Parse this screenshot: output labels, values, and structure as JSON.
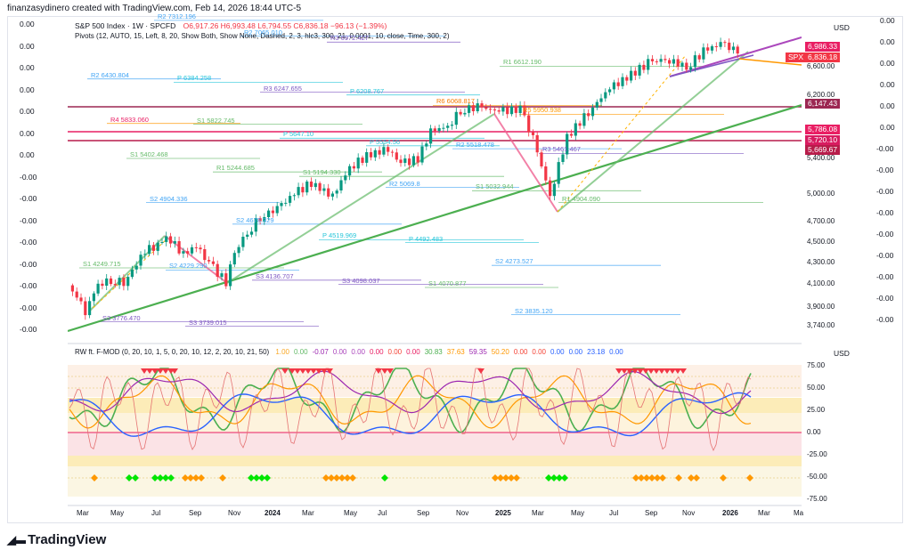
{
  "header_text": "finanzasydinero created with TradingView.com, Feb 14, 2026 18:44 UTC-5",
  "brand": "TradingView",
  "legend": {
    "symbol": "S&P 500 Index · 1W · SPCFD",
    "ohlc": "O6,917.26  H6,993.48  L6,794.55  C6,836.18  −96.13 (−1.39%)",
    "pivots": "Pivots (12, AUTO, 15, Left, 8, 20, Show Both, Show None, Dashed, 2, 3, hlc3, 300, 21, 0.0001, 10, close, Time, 300, 2)",
    "osc": "RW ft. F-MOD (0, 20, 10, 1, 5, 0, 20, 10, 12, 2, 20, 10, 21, 50)",
    "osc_vals": [
      "1.00",
      "0.00",
      "-0.07",
      "0.00",
      "0.00",
      "0.00",
      "0.00",
      "0.00",
      "30.83",
      "37.63",
      "59.35",
      "50.20",
      "0.00",
      "0.00",
      "0.00",
      "0.00",
      "23.18",
      "0.00"
    ],
    "osc_colors": [
      "#f9a825",
      "#66bb6a",
      "#9c27b0",
      "#ab47bc",
      "#ab47bc",
      "#e91e63",
      "#f44336",
      "#e91e63",
      "#4caf50",
      "#ff9800",
      "#9c27b0",
      "#ff9800",
      "#f44336",
      "#f44336",
      "#2962ff",
      "#2962ff",
      "#2962ff",
      "#2962ff"
    ]
  },
  "price_axis": {
    "currency": "USD",
    "ticks": [
      "6,600.00",
      "6,200.00",
      "5,400.00",
      "5,000.00",
      "4,700.00",
      "4,500.00",
      "4,300.00",
      "4,100.00",
      "3,900.00",
      "3,740.00"
    ],
    "tags": [
      {
        "text": "6,986.33",
        "color": "#e91e63"
      },
      {
        "text": "SPX",
        "color": "#f23645"
      },
      {
        "text": "6,836.18",
        "color": "#f23645"
      },
      {
        "text": "6,147.43",
        "color": "#9c2752"
      },
      {
        "text": "5,786.08",
        "color": "#e91e63"
      },
      {
        "text": "5,720.10",
        "color": "#d81b60"
      },
      {
        "text": "5,669.67",
        "color": "#b71c4a"
      }
    ]
  },
  "osc_axis": {
    "currency": "USD",
    "ticks": [
      "75.00",
      "50.00",
      "25.00",
      "0.00",
      "-25.00",
      "-50.00",
      "-75.00"
    ]
  },
  "side_left": [
    "0.00",
    "0.00",
    "0.00",
    "0.00",
    "0.00",
    "0.00",
    "0.00",
    "-0.00",
    "-0.00",
    "-0.00",
    "-0.00",
    "-0.00",
    "-0.00",
    "-0.00",
    "-0.00"
  ],
  "side_right": [
    "0.00",
    "0.00",
    "0.00",
    "0.00",
    "0.00",
    "0.00",
    "-0.00",
    "-0.00",
    "-0.00",
    "-0.00",
    "-0.00",
    "-0.00",
    "-0.00",
    "-0.00",
    "-0.00"
  ],
  "time_axis": [
    "Mar",
    "May",
    "Jul",
    "Sep",
    "Nov",
    "2024",
    "Mar",
    "May",
    "Jul",
    "Sep",
    "Nov",
    "2025",
    "Mar",
    "May",
    "Jul",
    "Sep",
    "Nov",
    "2026",
    "Mar",
    "Ma"
  ],
  "pivot_labels": [
    {
      "name": "R4",
      "value": "7514.049",
      "color": "#ab47bc"
    },
    {
      "name": "R2",
      "value": "7312.196",
      "color": "#42a5f5"
    },
    {
      "name": "R2",
      "value": "7065.010",
      "color": "#42a5f5"
    },
    {
      "name": "R3",
      "value": "6972.427",
      "color": "#7e57c2"
    },
    {
      "name": "R1",
      "value": "2015.364",
      "color": "#66bb6a"
    },
    {
      "name": "R1",
      "value": "6612.190",
      "color": "#66bb6a"
    },
    {
      "name": "R2",
      "value": "6430.804",
      "color": "#42a5f5"
    },
    {
      "name": "P",
      "value": "6384.258",
      "color": "#26c6da"
    },
    {
      "name": "R3",
      "value": "6247.655",
      "color": "#7e57c2"
    },
    {
      "name": "P",
      "value": "6208.767",
      "color": "#26c6da"
    },
    {
      "name": "R6",
      "value": "6068.817",
      "color": "#f57c00"
    },
    {
      "name": "R5",
      "value": "5950.938",
      "color": "#ff9800"
    },
    {
      "name": "R4",
      "value": "5833.060",
      "color": "#e91e63"
    },
    {
      "name": "S1",
      "value": "5822.745",
      "color": "#66bb6a"
    },
    {
      "name": "P",
      "value": "5647.10",
      "color": "#26c6da"
    },
    {
      "name": "P",
      "value": "5554.56",
      "color": "#26c6da"
    },
    {
      "name": "R2",
      "value": "5518.478",
      "color": "#42a5f5"
    },
    {
      "name": "R3",
      "value": "5461.467",
      "color": "#7e57c2"
    },
    {
      "name": "S1",
      "value": "5402.468",
      "color": "#66bb6a"
    },
    {
      "name": "R1",
      "value": "5244.685",
      "color": "#66bb6a"
    },
    {
      "name": "S1",
      "value": "5194.330",
      "color": "#66bb6a"
    },
    {
      "name": "R2",
      "value": "5069.8",
      "color": "#42a5f5"
    },
    {
      "name": "S1",
      "value": "5032.944",
      "color": "#66bb6a"
    },
    {
      "name": "R1",
      "value": "4904.090",
      "color": "#66bb6a"
    },
    {
      "name": "S2",
      "value": "4904.336",
      "color": "#42a5f5"
    },
    {
      "name": "S2",
      "value": "4678.329",
      "color": "#42a5f5"
    },
    {
      "name": "P",
      "value": "4519.969",
      "color": "#26c6da"
    },
    {
      "name": "P",
      "value": "4492.483",
      "color": "#26c6da"
    },
    {
      "name": "S2",
      "value": "4273.527",
      "color": "#42a5f5"
    },
    {
      "name": "S1",
      "value": "4249.715",
      "color": "#66bb6a"
    },
    {
      "name": "S2",
      "value": "4229.290",
      "color": "#42a5f5"
    },
    {
      "name": "S3",
      "value": "4136.707",
      "color": "#7e57c2"
    },
    {
      "name": "S3",
      "value": "4098.037",
      "color": "#7e57c2"
    },
    {
      "name": "S1",
      "value": "4070.877",
      "color": "#66bb6a"
    },
    {
      "name": "S2",
      "value": "3835.120",
      "color": "#42a5f5"
    },
    {
      "name": "S3",
      "value": "3776.470",
      "color": "#7e57c2"
    },
    {
      "name": "S3",
      "value": "3739.015",
      "color": "#7e57c2"
    },
    {
      "name": "S4",
      "value": "3595.084",
      "color": "#e91e63"
    }
  ],
  "chart_data": {
    "type": "candlestick",
    "title": "S&P 500 Index · 1W · SPCFD",
    "ohlc": {
      "open": 6917.26,
      "high": 6993.48,
      "low": 6794.55,
      "close": 6836.18,
      "change": -96.13,
      "change_pct": -1.39
    },
    "x_range": [
      "2023-02",
      "2026-05"
    ],
    "ylim": [
      3700,
      7100
    ],
    "series": [
      {
        "name": "S&P 500 Index",
        "values": [
          [
            "2023-02-06",
            4090
          ],
          [
            "2023-02-20",
            3980
          ],
          [
            "2023-03-06",
            3860
          ],
          [
            "2023-03-13",
            3920
          ],
          [
            "2023-03-27",
            4110
          ],
          [
            "2023-04-17",
            4130
          ],
          [
            "2023-05-08",
            4120
          ],
          [
            "2023-05-29",
            4280
          ],
          [
            "2023-06-12",
            4410
          ],
          [
            "2023-06-26",
            4450
          ],
          [
            "2023-07-17",
            4540
          ],
          [
            "2023-07-31",
            4480
          ],
          [
            "2023-08-14",
            4370
          ],
          [
            "2023-09-04",
            4460
          ],
          [
            "2023-09-25",
            4290
          ],
          [
            "2023-10-23",
            4120
          ],
          [
            "2023-11-06",
            4410
          ],
          [
            "2023-11-27",
            4590
          ],
          [
            "2023-12-18",
            4750
          ],
          [
            "2024-01-15",
            4840
          ],
          [
            "2024-02-12",
            5000
          ],
          [
            "2024-03-11",
            5120
          ],
          [
            "2024-04-15",
            4970
          ],
          [
            "2024-05-13",
            5300
          ],
          [
            "2024-06-10",
            5430
          ],
          [
            "2024-07-15",
            5520
          ],
          [
            "2024-08-05",
            5340
          ],
          [
            "2024-09-02",
            5400
          ],
          [
            "2024-09-23",
            5730
          ],
          [
            "2024-10-21",
            5800
          ],
          [
            "2024-11-11",
            6000
          ],
          [
            "2024-12-09",
            6050
          ],
          [
            "2025-01-13",
            5990
          ],
          [
            "2025-02-17",
            6020
          ],
          [
            "2025-03-10",
            5640
          ],
          [
            "2025-04-07",
            4980
          ],
          [
            "2025-05-05",
            5660
          ],
          [
            "2025-06-09",
            5980
          ],
          [
            "2025-07-14",
            6300
          ],
          [
            "2025-08-11",
            6450
          ],
          [
            "2025-09-15",
            6660
          ],
          [
            "2025-10-13",
            6720
          ],
          [
            "2025-11-17",
            6600
          ],
          [
            "2025-12-15",
            6830
          ],
          [
            "2026-01-12",
            6950
          ],
          [
            "2026-02-09",
            6836
          ]
        ]
      }
    ],
    "oscillator": {
      "name": "RW ft. F-MOD",
      "ylim": [
        -75,
        75
      ],
      "ticks": [
        75,
        50,
        25,
        0,
        -25,
        -50,
        -75
      ]
    }
  }
}
